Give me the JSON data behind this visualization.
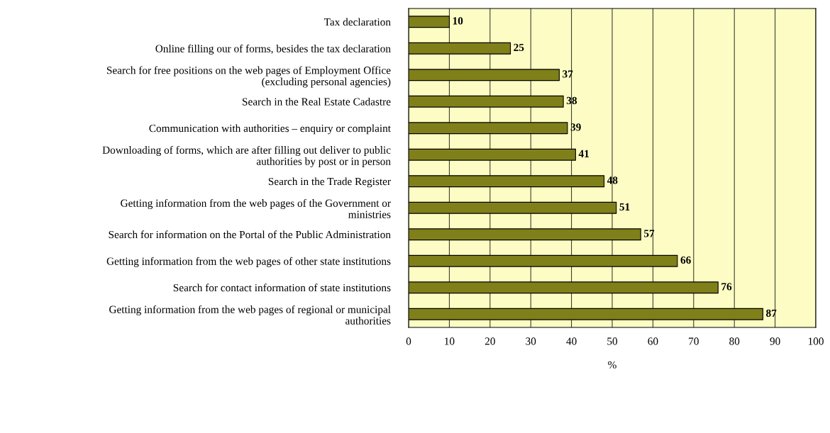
{
  "chart_data": {
    "type": "bar",
    "orientation": "horizontal",
    "categories": [
      "Tax declaration",
      "Online filling our of forms, besides the tax declaration",
      "Search for free positions on the web pages of Employment Office\n(excluding personal agencies)",
      "Search in the Real Estate Cadastre",
      "Communication with authorities – enquiry or complaint",
      "Downloading of forms, which are after filling out deliver to public\nauthorities by post or in person",
      "Search in the Trade Register",
      "Getting information from the web pages of the Government or\nministries",
      "Search for information on the Portal of the Public Administration",
      "Getting information from the web pages of other state institutions",
      "Search for contact information of state institutions",
      "Getting information from the web pages of regional or municipal\nauthorities"
    ],
    "values": [
      10,
      25,
      37,
      38,
      39,
      41,
      48,
      51,
      57,
      66,
      76,
      87
    ],
    "color": "#80801a",
    "data_labels": true,
    "xlim": [
      0,
      100
    ],
    "xticks": [
      0,
      10,
      20,
      30,
      40,
      50,
      60,
      70,
      80,
      90,
      100
    ],
    "xlabel": "%",
    "grid": "x"
  }
}
